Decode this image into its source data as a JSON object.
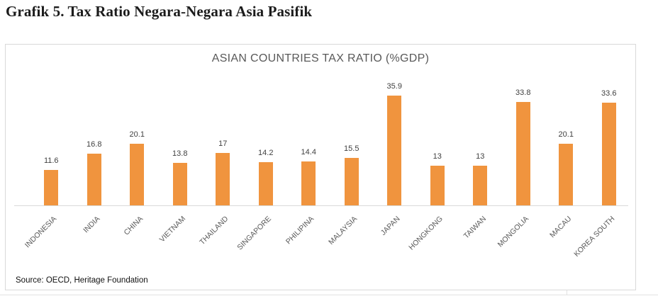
{
  "page": {
    "heading": "Grafik 5. Tax Ratio Negara-Negara Asia Pasifik",
    "source_note": "Source: OECD, Heritage Foundation"
  },
  "chart_data": {
    "type": "bar",
    "title": "ASIAN COUNTRIES TAX RATIO (%GDP)",
    "categories": [
      "INDONESIA",
      "INDIA",
      "CHINA",
      "VIETNAM",
      "THAILAND",
      "SINGAPORE",
      "PHILIPINA",
      "MALAYSIA",
      "JAPAN",
      "HONGKONG",
      "TAIWAN",
      "MONGOLIA",
      "MACAU",
      "KOREA SOUTH"
    ],
    "values": [
      11.6,
      16.8,
      20.1,
      13.8,
      17,
      14.2,
      14.4,
      15.5,
      35.9,
      13,
      13,
      33.8,
      20.1,
      33.6
    ],
    "value_labels": [
      "11.6",
      "16.8",
      "20.1",
      "13.8",
      "17",
      "14.2",
      "14.4",
      "15.5",
      "35.9",
      "13",
      "13",
      "33.8",
      "20.1",
      "33.6"
    ],
    "xlabel": "",
    "ylabel": "",
    "ylim": [
      0,
      40
    ],
    "grid": false,
    "legend": "none",
    "data_labels": "above-bars",
    "category_label_rotation_deg": 45,
    "colors": {
      "bar": "#F0943E",
      "value_label": "#404040",
      "axis_text": "#595959",
      "title": "#595959",
      "axis_line": "#D9D9D9",
      "border": "#D9D9D9",
      "heading_text": "#1C1C1C"
    }
  }
}
